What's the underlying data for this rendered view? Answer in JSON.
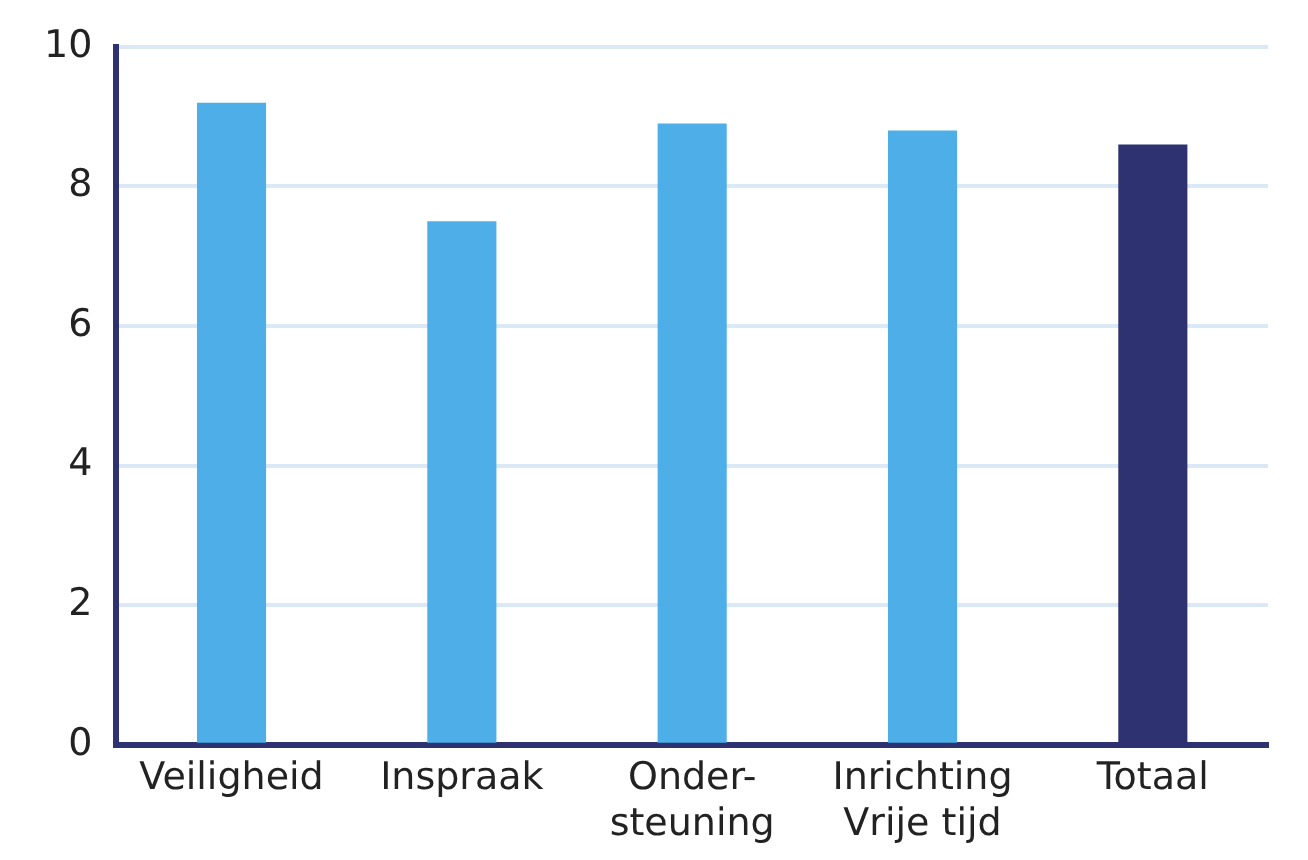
{
  "chart_data": {
    "type": "bar",
    "categories": [
      "Veiligheid",
      "Inspraak",
      "Onder-\nsteuning",
      "Inrichting\nVrije tijd",
      "Totaal"
    ],
    "values": [
      9.2,
      7.5,
      8.9,
      8.8,
      8.6
    ],
    "colors": [
      "#4daee8",
      "#4daee8",
      "#4daee8",
      "#4daee8",
      "#2e3270"
    ],
    "ylim": [
      0,
      10
    ],
    "yticks": [
      0,
      2,
      4,
      6,
      8,
      10
    ],
    "grid": "y",
    "legend": false
  }
}
